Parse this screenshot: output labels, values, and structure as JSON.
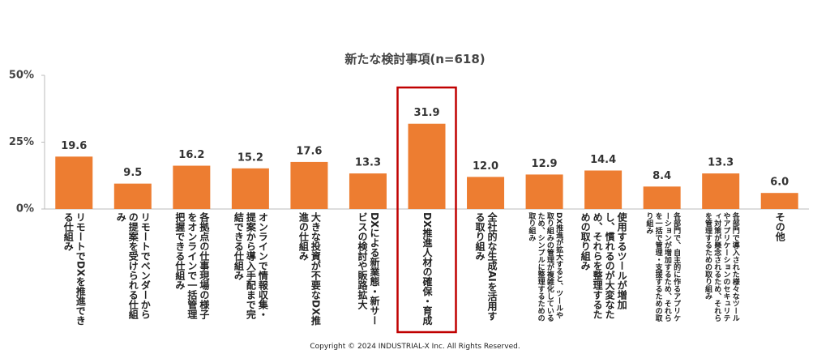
{
  "chart_data": {
    "type": "bar",
    "title": "新たな検討事項(n=618)",
    "categories": [
      "リモートでDXを推進できる仕組み",
      "リモートでベンダーからの提案を受けられる仕組み",
      "各拠点の仕事現場の様子をオンラインで一括管理把握できる仕組み",
      "オンラインで情報収集・提案から導入手配まで完結できる仕組み",
      "大きな投資が不要なDX推進の仕組み",
      "DXによる新業態・新サービスの検討や販路拡大",
      "DX推進人材の確保・育成",
      "全社的な生成AIを活用する取り組み",
      "DX推進が拡大すると、ツールや取り組みの管理が複雑化しているため、シンプルに整理するための取り組み",
      "使用するツールが増加し、慣れるのが大変なため、それらを整理するための取り組み",
      "各部門で、自主的に作るアプリケーションが増加するため、それらを一括で管理・支援するための取り組み",
      "各部門で導入された様々なツールやアプリケーションのセキュリティ対策が懸念されるため、それらを管理するための取り組み",
      "その他"
    ],
    "values": [
      19.6,
      9.5,
      16.2,
      15.2,
      17.6,
      13.3,
      31.9,
      12.0,
      12.9,
      14.4,
      8.4,
      13.3,
      6.0
    ],
    "value_labels": [
      "19.6",
      "9.5",
      "16.2",
      "15.2",
      "17.6",
      "13.3",
      "31.9",
      "12.0",
      "12.9",
      "14.4",
      "8.4",
      "13.3",
      "6.0"
    ],
    "color": "#ed7d31",
    "highlight_index": 6,
    "highlight_color": "#c00000",
    "ylim": [
      0,
      50
    ],
    "yticks": [
      {
        "value": 0,
        "label": "0%"
      },
      {
        "value": 25,
        "label": "25%"
      },
      {
        "value": 50,
        "label": "50%"
      }
    ],
    "footer": "Copyright © 2024 INDUSTRIAL-X Inc. All Rights Reserved."
  }
}
